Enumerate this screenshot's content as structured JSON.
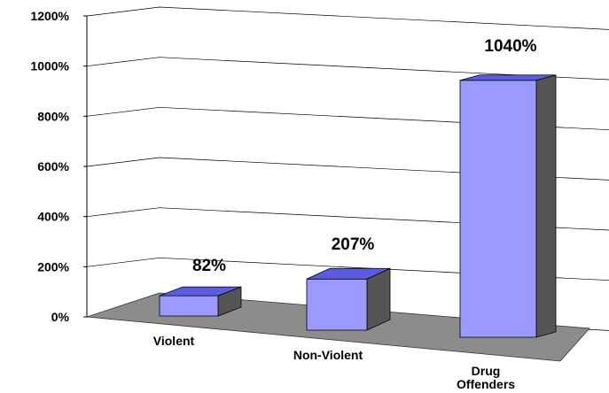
{
  "chart_data": {
    "type": "bar",
    "style": "3d-perspective",
    "categories": [
      "Violent",
      "Non-Violent",
      "Drug Offenders"
    ],
    "values": [
      82,
      207,
      1040
    ],
    "data_labels": [
      "82%",
      "207%",
      "1040%"
    ],
    "title": "",
    "xlabel": "",
    "ylabel": "",
    "ylim": [
      0,
      1200
    ],
    "y_ticks": [
      0,
      200,
      400,
      600,
      800,
      1000,
      1200
    ],
    "y_tick_labels": [
      "0%",
      "200%",
      "400%",
      "600%",
      "800%",
      "1000%",
      "1200%"
    ],
    "grid": true,
    "legend": "none",
    "colors": {
      "bar_front": "#9999ff",
      "bar_top": "#5c5ce0",
      "bar_side": "#555555",
      "floor": "#8c8c8c",
      "gridline": "#000000"
    }
  }
}
